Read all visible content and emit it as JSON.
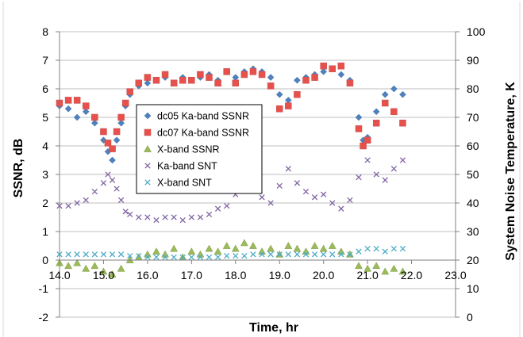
{
  "chart_data": {
    "type": "scatter",
    "xlabel": "Time, hr",
    "ylabel_left": "SSNR, dB",
    "ylabel_right": "System Noise Temperature, K",
    "xlim": [
      14.0,
      23.0
    ],
    "xticks": [
      "14.0",
      "15.0",
      "16.0",
      "17.0",
      "18.0",
      "19.0",
      "20.0",
      "21.0",
      "22.0",
      "23.0"
    ],
    "ylim_left": [
      -2,
      8
    ],
    "yticks_left": [
      "8",
      "7",
      "6",
      "5",
      "4",
      "3",
      "2",
      "1",
      "0",
      "-1",
      "-2"
    ],
    "ylim_right": [
      0,
      100
    ],
    "yticks_right": [
      "100",
      "90",
      "80",
      "70",
      "60",
      "50",
      "40",
      "30",
      "20",
      "10",
      "0"
    ],
    "grid": "horizontal",
    "legend_position": "center-left",
    "series": [
      {
        "name": "dc05 Ka-band SSNR",
        "axis": "left",
        "marker": "diamond",
        "color": "#4f81bd",
        "x": [
          14.0,
          14.2,
          14.4,
          14.6,
          14.8,
          15.0,
          15.1,
          15.2,
          15.3,
          15.4,
          15.5,
          15.6,
          15.8,
          16.0,
          16.2,
          16.4,
          16.6,
          16.8,
          17.0,
          17.2,
          17.4,
          17.6,
          17.8,
          18.0,
          18.2,
          18.4,
          18.6,
          18.8,
          19.0,
          19.2,
          19.4,
          19.6,
          19.8,
          20.0,
          20.2,
          20.4,
          20.6,
          20.8,
          20.9,
          21.0,
          21.2,
          21.4,
          21.6,
          21.8
        ],
        "y": [
          5.4,
          5.3,
          5.0,
          5.2,
          4.8,
          4.2,
          3.8,
          3.5,
          4.2,
          4.8,
          5.4,
          5.8,
          6.1,
          6.2,
          6.3,
          6.4,
          6.2,
          6.4,
          6.3,
          6.4,
          6.5,
          6.3,
          6.6,
          6.4,
          6.6,
          6.7,
          6.6,
          6.4,
          5.8,
          5.6,
          6.3,
          6.4,
          6.5,
          6.6,
          6.7,
          6.5,
          6.3,
          5.0,
          4.2,
          4.3,
          5.2,
          5.8,
          6.0,
          5.8
        ]
      },
      {
        "name": "dc07 Ka-band SSNR",
        "axis": "left",
        "marker": "square",
        "color": "#e8504c",
        "x": [
          14.0,
          14.2,
          14.4,
          14.6,
          14.8,
          15.0,
          15.1,
          15.2,
          15.3,
          15.4,
          15.5,
          15.6,
          15.8,
          16.0,
          16.2,
          16.4,
          16.6,
          16.8,
          17.0,
          17.2,
          17.4,
          17.6,
          17.8,
          18.0,
          18.2,
          18.4,
          18.6,
          18.8,
          19.0,
          19.2,
          19.4,
          19.6,
          19.8,
          20.0,
          20.2,
          20.4,
          20.6,
          20.8,
          20.9,
          21.0,
          21.2,
          21.4,
          21.6,
          21.8
        ],
        "y": [
          5.5,
          5.6,
          5.6,
          5.4,
          5.0,
          4.5,
          4.1,
          3.9,
          4.5,
          5.0,
          5.5,
          5.9,
          6.2,
          6.4,
          6.3,
          6.5,
          6.2,
          6.3,
          6.3,
          6.5,
          6.4,
          6.2,
          6.6,
          6.2,
          6.5,
          6.6,
          6.5,
          6.1,
          5.3,
          5.4,
          5.8,
          6.3,
          6.4,
          6.8,
          6.7,
          6.8,
          6.2,
          4.6,
          4.0,
          4.2,
          4.8,
          5.5,
          5.2,
          4.8
        ]
      },
      {
        "name": "X-band SSNR",
        "axis": "left",
        "marker": "triangle",
        "color": "#9bbb59",
        "x": [
          14.0,
          14.2,
          14.4,
          14.6,
          14.8,
          15.0,
          15.2,
          15.4,
          15.6,
          15.8,
          16.0,
          16.2,
          16.4,
          16.6,
          16.8,
          17.0,
          17.2,
          17.4,
          17.6,
          17.8,
          18.0,
          18.2,
          18.4,
          18.6,
          18.8,
          19.0,
          19.2,
          19.4,
          19.6,
          19.8,
          20.0,
          20.2,
          20.4,
          20.6,
          20.8,
          21.0,
          21.2,
          21.4,
          21.6,
          21.8
        ],
        "y": [
          -0.1,
          -0.2,
          -0.1,
          -0.3,
          -0.2,
          -0.4,
          -0.5,
          -0.3,
          0.0,
          0.1,
          0.2,
          0.3,
          0.2,
          0.4,
          0.1,
          0.3,
          0.2,
          0.4,
          0.3,
          0.5,
          0.4,
          0.6,
          0.5,
          0.3,
          0.4,
          0.2,
          0.5,
          0.4,
          0.3,
          0.5,
          0.4,
          0.5,
          0.3,
          0.2,
          -0.2,
          -0.3,
          -0.2,
          -0.4,
          -0.3,
          -0.4
        ]
      },
      {
        "name": "Ka-band SNT",
        "axis": "right",
        "marker": "x",
        "color": "#8064a2",
        "x": [
          14.0,
          14.2,
          14.4,
          14.6,
          14.8,
          15.0,
          15.1,
          15.2,
          15.3,
          15.4,
          15.5,
          15.6,
          15.8,
          16.0,
          16.2,
          16.4,
          16.6,
          16.8,
          17.0,
          17.2,
          17.4,
          17.6,
          17.8,
          18.0,
          18.2,
          18.4,
          18.6,
          18.8,
          19.0,
          19.2,
          19.4,
          19.6,
          19.8,
          20.0,
          20.2,
          20.4,
          20.6,
          20.8,
          21.0,
          21.2,
          21.4,
          21.6,
          21.8
        ],
        "y": [
          39,
          39,
          40,
          41,
          44,
          47,
          50,
          48,
          45,
          41,
          37,
          36,
          35,
          35,
          34,
          35,
          35,
          34,
          35,
          35,
          36,
          38,
          39,
          43,
          46,
          45,
          42,
          40,
          46,
          52,
          47,
          44,
          42,
          43,
          40,
          38,
          41,
          49,
          55,
          50,
          48,
          52,
          55
        ]
      },
      {
        "name": "X-band SNT",
        "axis": "right",
        "marker": "x",
        "color": "#4bacc6",
        "x": [
          14.0,
          14.2,
          14.4,
          14.6,
          14.8,
          15.0,
          15.2,
          15.4,
          15.6,
          15.8,
          16.0,
          16.2,
          16.4,
          16.6,
          16.8,
          17.0,
          17.2,
          17.4,
          17.6,
          17.8,
          18.0,
          18.2,
          18.4,
          18.6,
          18.8,
          19.0,
          19.2,
          19.4,
          19.6,
          19.8,
          20.0,
          20.2,
          20.4,
          20.6,
          20.8,
          21.0,
          21.2,
          21.4,
          21.6,
          21.8
        ],
        "y": [
          22,
          22,
          22,
          22,
          22,
          22,
          22,
          22,
          21.5,
          21.5,
          21,
          21,
          21,
          21,
          21,
          21,
          21,
          21,
          21,
          21.5,
          21.5,
          21.5,
          22,
          22,
          22,
          22,
          22,
          22,
          22,
          22,
          22,
          22,
          22,
          22,
          23,
          24,
          24,
          23,
          24,
          24
        ]
      }
    ]
  }
}
